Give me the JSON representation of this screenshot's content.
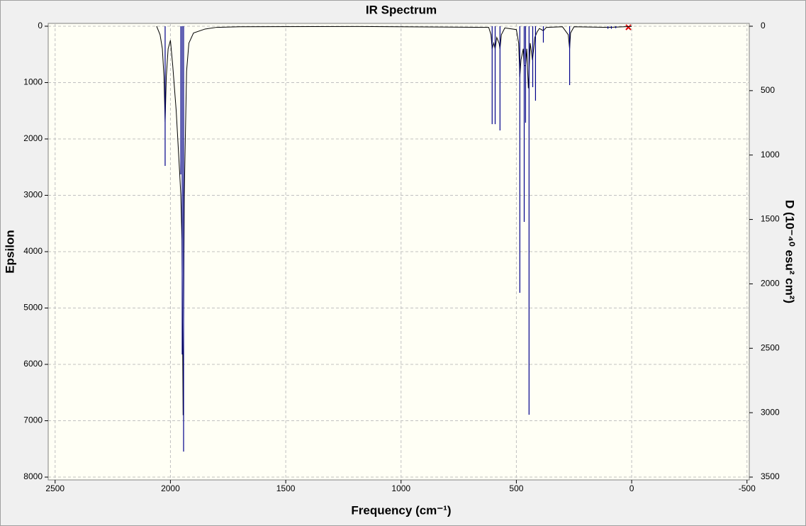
{
  "chart_data": {
    "type": "line",
    "title": "IR Spectrum",
    "x_label": "Frequency (cm⁻¹)",
    "y_label": "Epsilon",
    "y2_label": "D (10⁻⁴⁰ esu² cm²)",
    "xlim": [
      2530,
      -510
    ],
    "xticks": [
      2500,
      2000,
      1500,
      1000,
      500,
      0,
      -500
    ],
    "ylim": [
      -50,
      8050
    ],
    "yticks": [
      0,
      1000,
      2000,
      3000,
      4000,
      5000,
      6000,
      7000,
      8000
    ],
    "y_inverted": true,
    "y2lim": [
      -22,
      3522
    ],
    "y2ticks": [
      0,
      500,
      1000,
      1500,
      2000,
      2500,
      3000,
      3500
    ],
    "grid": true,
    "series": [
      {
        "color": "#000000",
        "x": [
          2060,
          2045,
          2035,
          2028,
          2023,
          2018,
          2010,
          2000,
          1990,
          1975,
          1960,
          1955,
          1950,
          1945,
          1940,
          1930,
          1920,
          1900,
          1850,
          1800,
          1700,
          1200,
          620,
          610,
          605,
          598,
          592,
          585,
          575,
          571,
          565,
          550,
          500,
          490,
          485,
          480,
          470,
          466,
          460,
          455,
          448,
          440,
          430,
          420,
          410,
          400,
          383,
          370,
          300,
          275,
          269,
          265,
          250,
          100,
          0
        ],
        "values": [
          0,
          150,
          400,
          900,
          1700,
          900,
          400,
          250,
          700,
          1500,
          2600,
          3000,
          3800,
          6900,
          3000,
          800,
          300,
          120,
          50,
          20,
          10,
          5,
          20,
          150,
          400,
          300,
          400,
          200,
          300,
          400,
          150,
          30,
          60,
          300,
          900,
          600,
          400,
          700,
          700,
          400,
          1100,
          300,
          600,
          200,
          100,
          40,
          80,
          20,
          10,
          150,
          400,
          120,
          10,
          20,
          5
        ]
      },
      {
        "color": "#00008b",
        "axis": "y2",
        "style": "stick",
        "x": [
          2023,
          1955,
          1949,
          1943,
          605,
          592,
          571,
          485,
          466,
          460,
          445,
          429,
          417,
          383,
          269,
          103,
          88,
          69
        ],
        "values": [
          1084,
          1150,
          2548,
          3302,
          760,
          760,
          809,
          2069,
          1519,
          749,
          3016,
          473,
          578,
          127,
          457,
          20,
          20,
          15
        ]
      }
    ]
  }
}
